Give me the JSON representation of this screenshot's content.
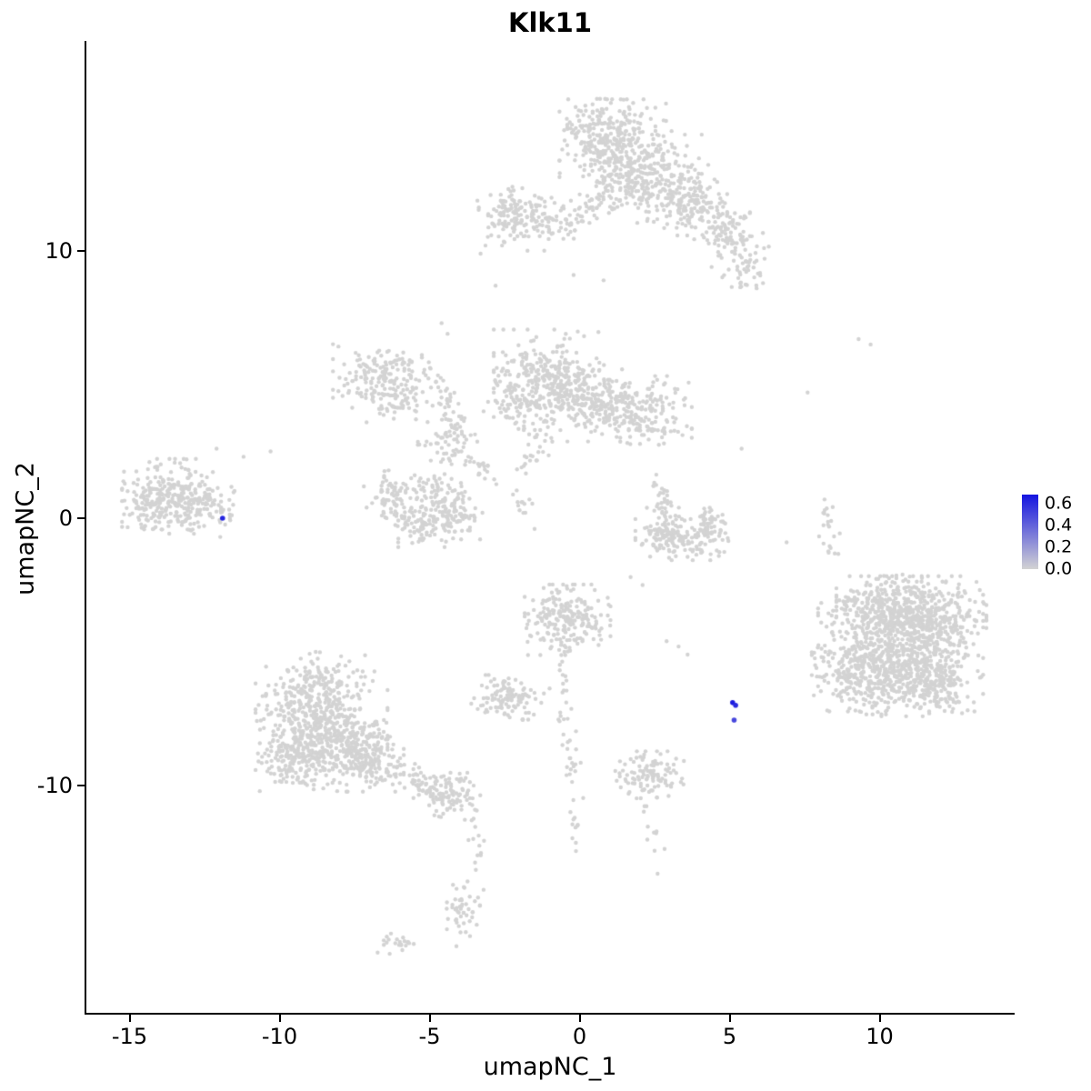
{
  "chart_data": {
    "type": "scatter",
    "title": "Klk11",
    "xlabel": "umapNC_1",
    "ylabel": "umapNC_2",
    "x_ticks": [
      -15,
      -10,
      -5,
      0,
      5,
      10
    ],
    "y_ticks": [
      10,
      0,
      -10
    ],
    "xlim": [
      -16.4,
      14.5
    ],
    "ylim": [
      -18.3,
      17.6
    ],
    "grid": false,
    "legend": {
      "position": "right",
      "tick_labels": [
        "0.6",
        "0.4",
        "0.2",
        "0.0"
      ],
      "tick_values": [
        0.6,
        0.4,
        0.2,
        0.0
      ],
      "vmin": 0,
      "vmax": 0.68
    },
    "point_color": "#D3D3D3",
    "highlight_color": "#1414E0",
    "axis_color": "#000000",
    "background_color": "#FFFFFF",
    "point_radius": 2.2,
    "clusters": [
      [
        1.2,
        13.8,
        0.85,
        0.85,
        300
      ],
      [
        2.2,
        12.7,
        0.85,
        0.75,
        240
      ],
      [
        0.5,
        14.7,
        0.5,
        0.45,
        70
      ],
      [
        3.6,
        11.9,
        0.6,
        0.6,
        110
      ],
      [
        4.9,
        10.7,
        0.55,
        0.5,
        80
      ],
      [
        5.5,
        9.3,
        0.4,
        0.45,
        45
      ],
      [
        -2.3,
        11.3,
        0.55,
        0.5,
        110
      ],
      [
        -1.2,
        11.0,
        0.5,
        0.45,
        70
      ],
      [
        -1.1,
        5.3,
        0.8,
        0.8,
        260
      ],
      [
        0.1,
        4.3,
        0.7,
        0.65,
        180
      ],
      [
        -2.1,
        4.4,
        0.5,
        0.5,
        80
      ],
      [
        2.2,
        4.0,
        0.7,
        0.6,
        160
      ],
      [
        1.1,
        4.3,
        0.5,
        0.4,
        60
      ],
      [
        -6.9,
        5.3,
        0.6,
        0.55,
        110
      ],
      [
        -6.0,
        4.5,
        0.5,
        0.45,
        70
      ],
      [
        -4.4,
        2.9,
        0.45,
        0.4,
        60
      ],
      [
        -6.2,
        0.8,
        0.45,
        0.45,
        80
      ],
      [
        -5.3,
        -0.2,
        0.55,
        0.4,
        90
      ],
      [
        -4.2,
        0.2,
        0.45,
        0.45,
        80
      ],
      [
        -4.7,
        1.0,
        0.4,
        0.35,
        50
      ],
      [
        -13.6,
        0.9,
        0.75,
        0.6,
        210
      ],
      [
        -12.6,
        0.4,
        0.5,
        0.5,
        90
      ],
      [
        -14.3,
        0.3,
        0.4,
        0.4,
        60
      ],
      [
        3.4,
        -0.8,
        0.7,
        0.35,
        130
      ],
      [
        4.3,
        -0.3,
        0.3,
        0.45,
        60
      ],
      [
        2.7,
        -0.3,
        0.28,
        0.4,
        50
      ],
      [
        10.7,
        -4.7,
        1.25,
        1.15,
        700
      ],
      [
        9.5,
        -5.8,
        0.8,
        0.7,
        250
      ],
      [
        11.8,
        -3.8,
        0.8,
        0.65,
        240
      ],
      [
        10.1,
        -3.2,
        0.7,
        0.5,
        170
      ],
      [
        11.6,
        -6.2,
        0.7,
        0.55,
        200
      ],
      [
        -8.6,
        -7.6,
        1.0,
        0.85,
        430
      ],
      [
        -7.4,
        -8.8,
        0.7,
        0.65,
        240
      ],
      [
        -9.4,
        -9.0,
        0.6,
        0.55,
        170
      ],
      [
        -8.8,
        -6.1,
        0.75,
        0.5,
        110
      ],
      [
        -4.3,
        -10.4,
        0.45,
        0.4,
        90
      ],
      [
        -3.9,
        -14.8,
        0.32,
        0.55,
        50
      ],
      [
        -6.1,
        -15.9,
        0.3,
        0.18,
        22
      ],
      [
        -0.4,
        -3.8,
        0.65,
        0.6,
        220
      ],
      [
        -2.4,
        -6.7,
        0.55,
        0.38,
        110
      ],
      [
        2.4,
        -9.6,
        0.55,
        0.4,
        110
      ]
    ],
    "trails": [
      [
        3.0,
        12.6,
        5.3,
        10.0,
        0.38,
        60
      ],
      [
        -0.4,
        10.9,
        1.0,
        12.1,
        0.3,
        40
      ],
      [
        -6.5,
        6.0,
        -4.7,
        5.4,
        0.22,
        35
      ],
      [
        -4.8,
        5.4,
        -4.2,
        3.5,
        0.22,
        30
      ],
      [
        -4.2,
        2.5,
        -2.9,
        1.6,
        0.2,
        22
      ],
      [
        -2.7,
        1.4,
        -1.6,
        0.2,
        0.18,
        12
      ],
      [
        -1.0,
        3.4,
        -1.8,
        1.8,
        0.2,
        26
      ],
      [
        2.6,
        1.7,
        2.9,
        0.3,
        0.18,
        22
      ],
      [
        8.1,
        1.0,
        8.5,
        -1.6,
        0.18,
        22
      ],
      [
        -6.8,
        -9.2,
        -4.7,
        -10.2,
        0.3,
        80
      ],
      [
        -3.6,
        -10.9,
        -3.4,
        -13.2,
        0.15,
        16
      ],
      [
        -0.6,
        -5.2,
        -0.3,
        -9.6,
        0.22,
        40
      ],
      [
        -0.2,
        -10.1,
        -0.1,
        -12.2,
        0.15,
        12
      ],
      [
        2.1,
        -10.5,
        2.6,
        -12.3,
        0.2,
        10
      ]
    ],
    "singles": [
      [
        -2.8,
        8.7
      ],
      [
        -4.6,
        7.3
      ],
      [
        -4.4,
        6.9
      ],
      [
        7.6,
        4.7
      ],
      [
        9.3,
        6.7
      ],
      [
        9.7,
        6.5
      ],
      [
        -11.2,
        2.3
      ],
      [
        -10.3,
        2.5
      ],
      [
        -12.1,
        2.6
      ],
      [
        -13.1,
        2.2
      ],
      [
        -1.5,
        -0.4
      ],
      [
        -2.0,
        0.3
      ],
      [
        3.3,
        -4.8
      ],
      [
        3.6,
        -5.1
      ],
      [
        2.9,
        -4.6
      ],
      [
        1.7,
        -2.2
      ],
      [
        2.1,
        -2.5
      ],
      [
        0.8,
        8.9
      ],
      [
        -0.2,
        9.1
      ],
      [
        5.9,
        8.6
      ],
      [
        4.4,
        9.4
      ],
      [
        -3.3,
        9.9
      ],
      [
        6.9,
        -0.9
      ],
      [
        2.6,
        -13.3
      ],
      [
        -3.2,
        -13.9
      ],
      [
        5.4,
        2.6
      ]
    ],
    "highlighted_points": [
      {
        "x": -11.9,
        "y": 0.0,
        "value": 0.62
      },
      {
        "x": 5.1,
        "y": -6.9,
        "value": 0.65
      },
      {
        "x": 5.2,
        "y": -7.0,
        "value": 0.6
      },
      {
        "x": 5.15,
        "y": -7.55,
        "value": 0.5
      }
    ]
  }
}
